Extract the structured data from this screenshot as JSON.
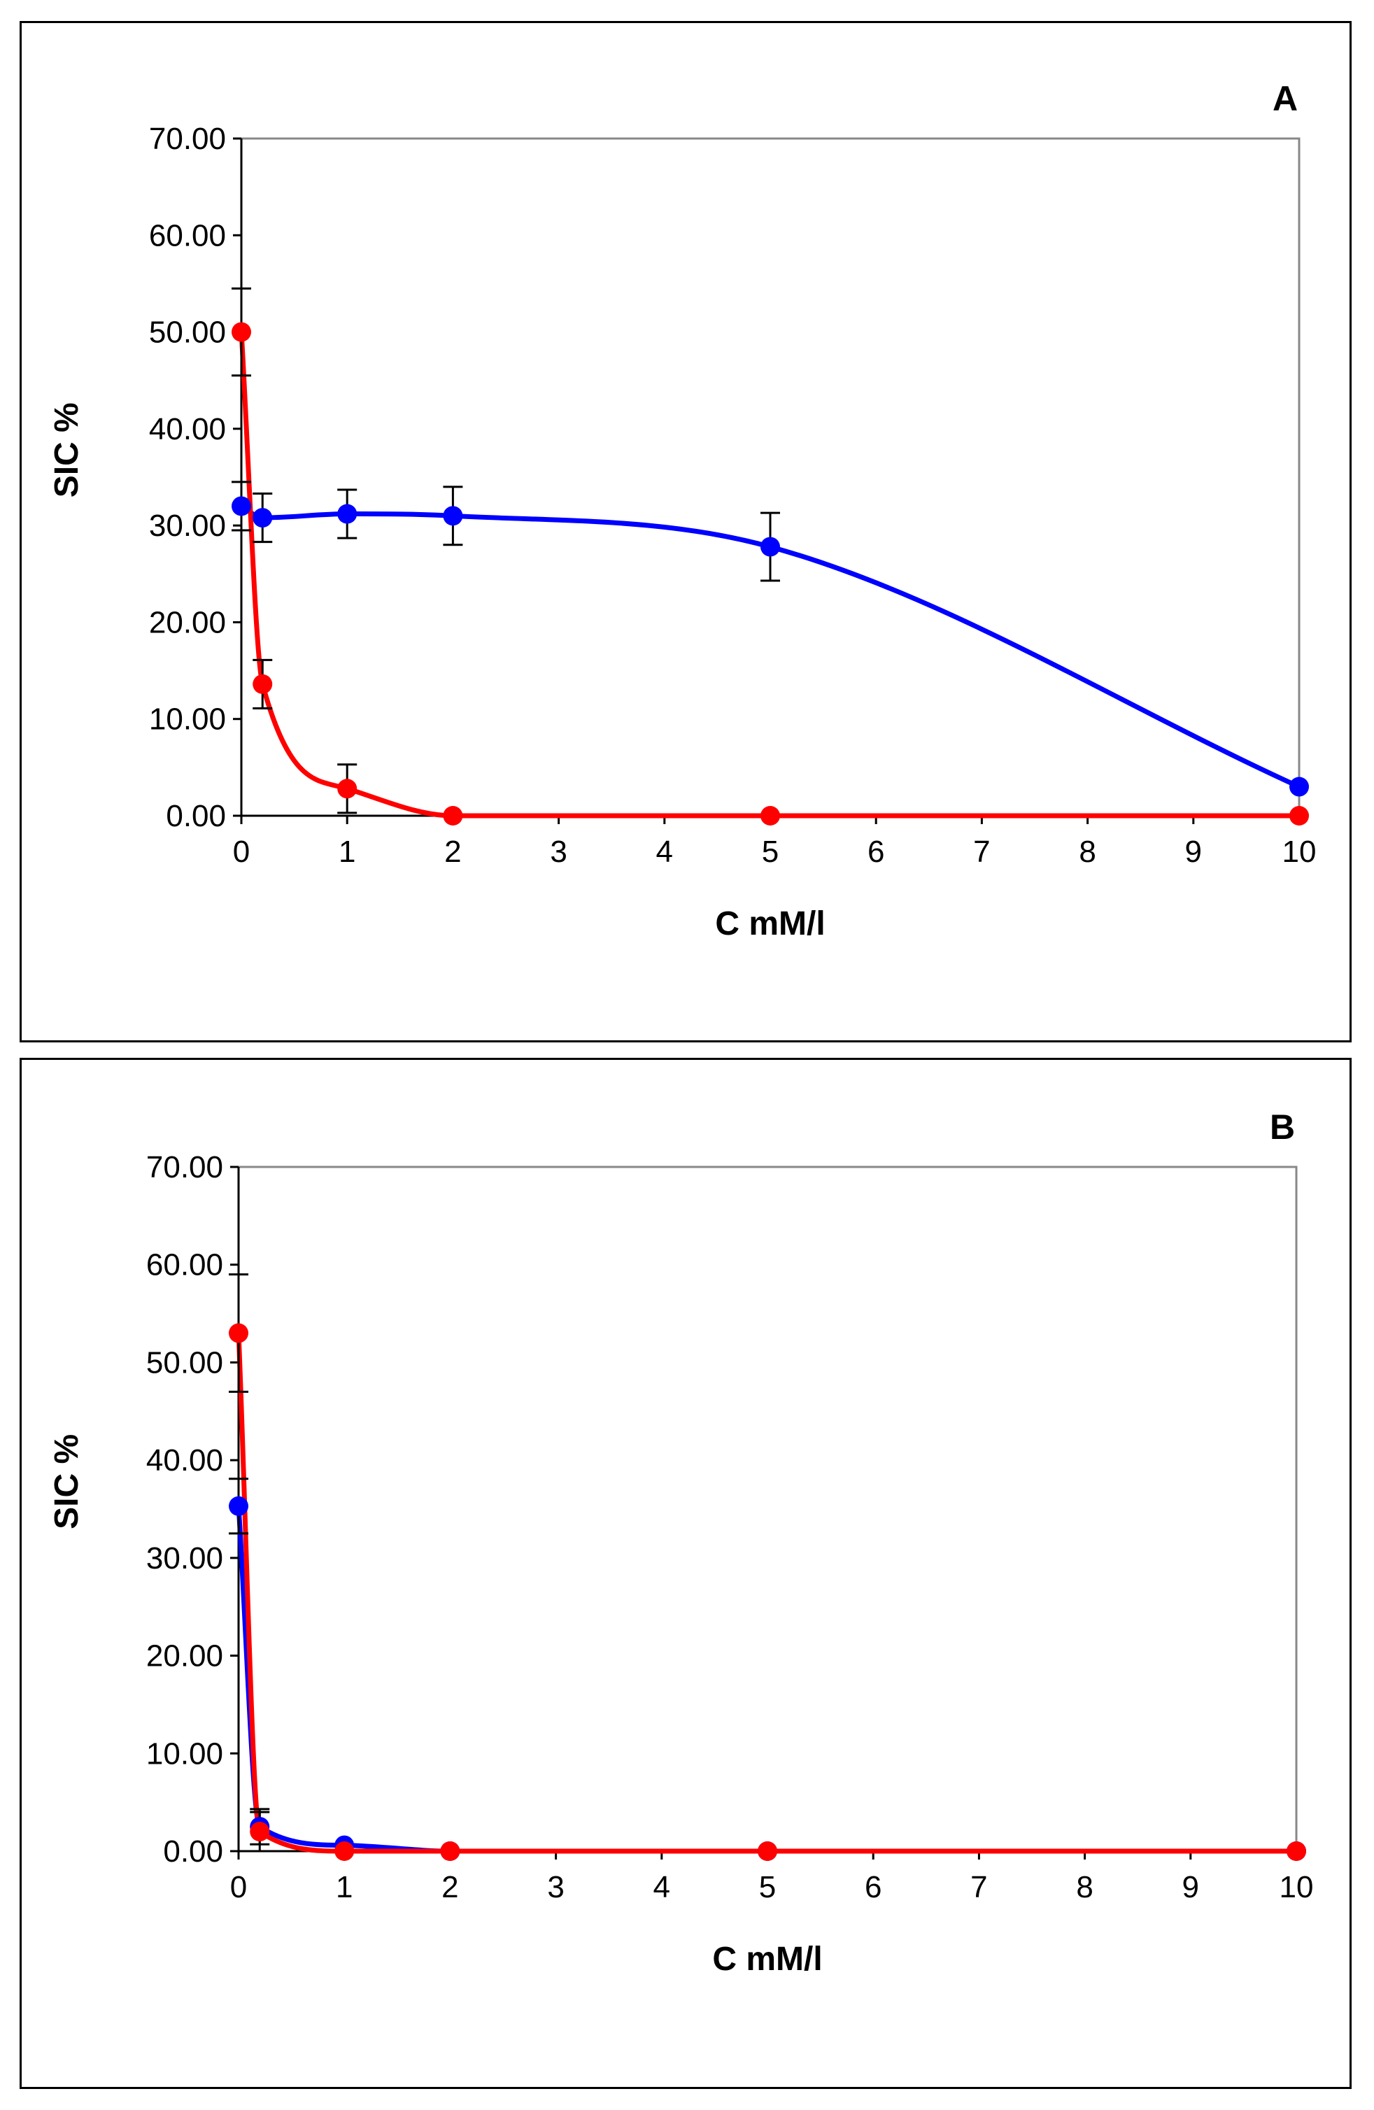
{
  "chart_data": [
    {
      "type": "line",
      "panel_label": "A",
      "xlabel": "C mM/l",
      "ylabel": "SIC %",
      "xlim": [
        0,
        10
      ],
      "ylim": [
        0,
        70
      ],
      "x_ticks": [
        "0",
        "1",
        "2",
        "3",
        "4",
        "5",
        "6",
        "7",
        "8",
        "9",
        "10"
      ],
      "y_ticks": [
        "0.00",
        "10.00",
        "20.00",
        "30.00",
        "40.00",
        "50.00",
        "60.00",
        "70.00"
      ],
      "grid": false,
      "series": [
        {
          "name": "blue",
          "color": "#0000ff",
          "x": [
            0,
            0.2,
            1,
            2,
            5,
            10
          ],
          "y": [
            32.0,
            30.8,
            31.2,
            31.0,
            27.8,
            3.0
          ],
          "err": [
            2.5,
            2.5,
            2.5,
            3.0,
            3.5,
            0
          ]
        },
        {
          "name": "red",
          "color": "#ff0000",
          "x": [
            0,
            0.2,
            1,
            2,
            5,
            10
          ],
          "y": [
            50.0,
            13.6,
            2.8,
            0.0,
            0.0,
            0.0
          ],
          "err": [
            4.5,
            2.5,
            2.5,
            0,
            0,
            0
          ]
        }
      ]
    },
    {
      "type": "line",
      "panel_label": "B",
      "xlabel": "C mM/l",
      "ylabel": "SIC %",
      "xlim": [
        0,
        10
      ],
      "ylim": [
        0,
        70
      ],
      "x_ticks": [
        "0",
        "1",
        "2",
        "3",
        "4",
        "5",
        "6",
        "7",
        "8",
        "9",
        "10"
      ],
      "y_ticks": [
        "0.00",
        "10.00",
        "20.00",
        "30.00",
        "40.00",
        "50.00",
        "60.00",
        "70.00"
      ],
      "grid": false,
      "series": [
        {
          "name": "blue",
          "color": "#0000ff",
          "x": [
            0,
            0.2,
            1,
            2,
            5,
            10
          ],
          "y": [
            35.3,
            2.5,
            0.6,
            0.0,
            0.0,
            0.0
          ],
          "err": [
            2.8,
            1.8,
            0,
            0,
            0,
            0
          ]
        },
        {
          "name": "red",
          "color": "#ff0000",
          "x": [
            0,
            0.2,
            1,
            2,
            5,
            10
          ],
          "y": [
            53.0,
            2.0,
            0.0,
            0.0,
            0.0,
            0.0
          ],
          "err": [
            6.0,
            2.0,
            0,
            0,
            0,
            0
          ]
        }
      ]
    }
  ]
}
